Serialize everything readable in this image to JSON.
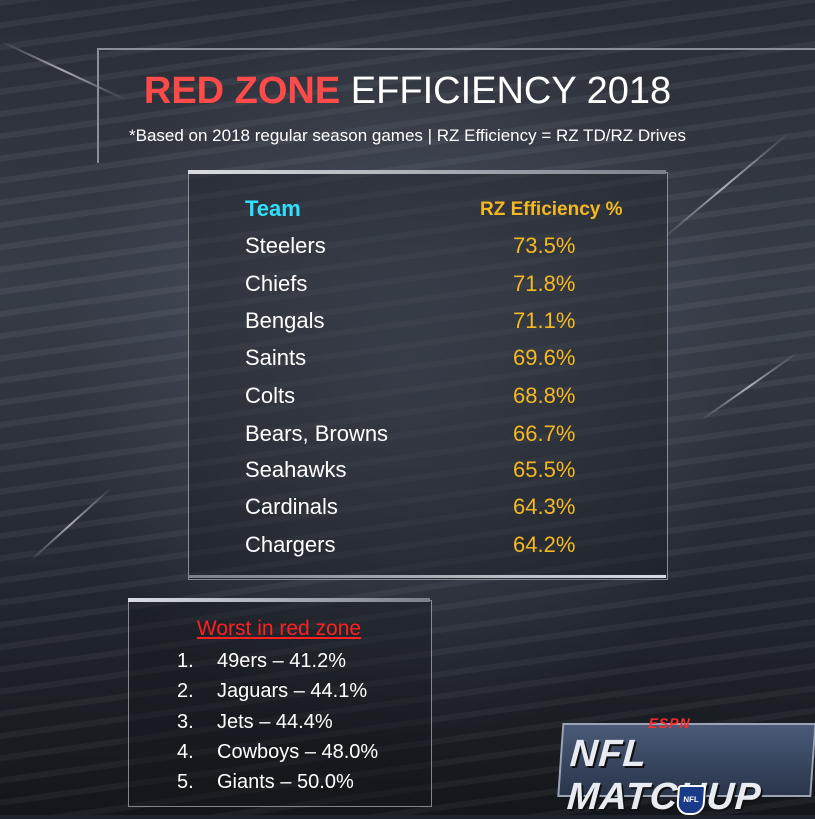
{
  "title": {
    "red_part": "RED ZONE",
    "white_part": "EFFICIENCY 2018"
  },
  "subtitle": "*Based on 2018 regular season games | RZ Efficiency = RZ TD/RZ Drives",
  "table": {
    "headers": {
      "team": "Team",
      "efficiency": "RZ Efficiency %"
    },
    "rows": [
      {
        "team": "Steelers",
        "value": "73.5%"
      },
      {
        "team": "Chiefs",
        "value": "71.8%"
      },
      {
        "team": "Bengals",
        "value": "71.1%"
      },
      {
        "team": "Saints",
        "value": "69.6%"
      },
      {
        "team": "Colts",
        "value": "68.8%"
      },
      {
        "team": "Bears, Browns",
        "value": "66.7%"
      },
      {
        "team": "Seahawks",
        "value": "65.5%"
      },
      {
        "team": "Cardinals",
        "value": "64.3%"
      },
      {
        "team": "Chargers",
        "value": "64.2%"
      }
    ]
  },
  "worst": {
    "title": "Worst in red zone",
    "items": [
      {
        "num": "1.",
        "text": "49ers – 41.2%"
      },
      {
        "num": "2.",
        "text": "Jaguars – 44.1%"
      },
      {
        "num": "3.",
        "text": "Jets – 44.4%"
      },
      {
        "num": "4.",
        "text": "Cowboys – 48.0%"
      },
      {
        "num": "5.",
        "text": "Giants – 50.0%"
      }
    ]
  },
  "logo": {
    "network": "ESPN",
    "show": "NFL MATCHUP",
    "league": "NFL"
  },
  "colors": {
    "title_red": "#ff4a4a",
    "team_header": "#30e0ff",
    "value_gold": "#f5b820",
    "worst_red": "#ff2020"
  }
}
